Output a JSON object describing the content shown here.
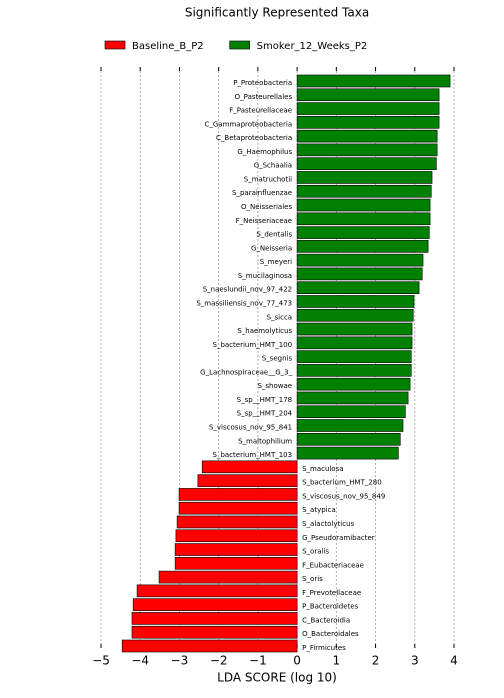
{
  "chart_data": {
    "type": "bar",
    "orientation": "horizontal",
    "title": "Significantly Represented Taxa",
    "x_label": "LDA SCORE (log 10)",
    "categories": [
      "P_Proteobacteria",
      "O_Pasteurellales",
      "F_Pasteurellaceae",
      "C_Gammaproteobacteria",
      "C_Betaproteobacteria",
      "G_Haemophilus",
      "G_Schaalia",
      "S_matruchotii",
      "S_parainfluenzae",
      "O_Neisseriales",
      "F_Neisseriaceae",
      "S_dentalis",
      "G_Neisseria",
      "S_meyeri",
      "S_mucilaginosa",
      "S_naeslundii_nov_97_422",
      "S_massiliensis_nov_77_473",
      "S_sicca",
      "S_haemolyticus",
      "S_bacterium_HMT_100",
      "S_segnis",
      "G_Lachnospiraceae__G_3_",
      "S_showae",
      "S_sp__HMT_178",
      "S_sp__HMT_204",
      "S_viscosus_nov_95_841",
      "S_maltophilium",
      "S_bacterium_HMT_103",
      "S_maculosa",
      "S_bacterium_HMT_280",
      "S_viscosus_nov_95_849",
      "S_atypica",
      "S_alactolyticus",
      "G_Pseudoramibacter",
      "S_oralis",
      "F_Eubacteriaceae",
      "S_oris",
      "F_Prevotellaceae",
      "P_Bacteroidetes",
      "C_Bacteroidia",
      "O_Bacteroidales",
      "P_Firmicutes"
    ],
    "series": [
      {
        "name": "Baseline_B_P2",
        "color": "#ff0000",
        "values": [
          null,
          null,
          null,
          null,
          null,
          null,
          null,
          null,
          null,
          null,
          null,
          null,
          null,
          null,
          null,
          null,
          null,
          null,
          null,
          null,
          null,
          null,
          null,
          null,
          null,
          null,
          null,
          null,
          -2.42,
          -2.53,
          -3.01,
          -3.01,
          -3.06,
          -3.09,
          -3.11,
          -3.11,
          -3.52,
          -4.08,
          -4.18,
          -4.21,
          -4.21,
          -4.46
        ]
      },
      {
        "name": "Smoker_12_Weeks_P2",
        "color": "#008000",
        "values": [
          3.9,
          3.62,
          3.62,
          3.62,
          3.57,
          3.57,
          3.55,
          3.44,
          3.42,
          3.39,
          3.39,
          3.37,
          3.34,
          3.21,
          3.19,
          3.11,
          2.98,
          2.96,
          2.93,
          2.93,
          2.91,
          2.91,
          2.88,
          2.83,
          2.76,
          2.7,
          2.63,
          2.58,
          null,
          null,
          null,
          null,
          null,
          null,
          null,
          null,
          null,
          null,
          null,
          null,
          null,
          null
        ]
      }
    ],
    "xlim": [
      -5,
      4
    ],
    "xticks": [
      {
        "value": -5,
        "label": "−5"
      },
      {
        "value": -4,
        "label": "−4"
      },
      {
        "value": -3,
        "label": "−3"
      },
      {
        "value": -2,
        "label": "−2"
      },
      {
        "value": -1,
        "label": "−1"
      },
      0,
      1,
      2,
      3,
      4
    ],
    "grid": true
  }
}
